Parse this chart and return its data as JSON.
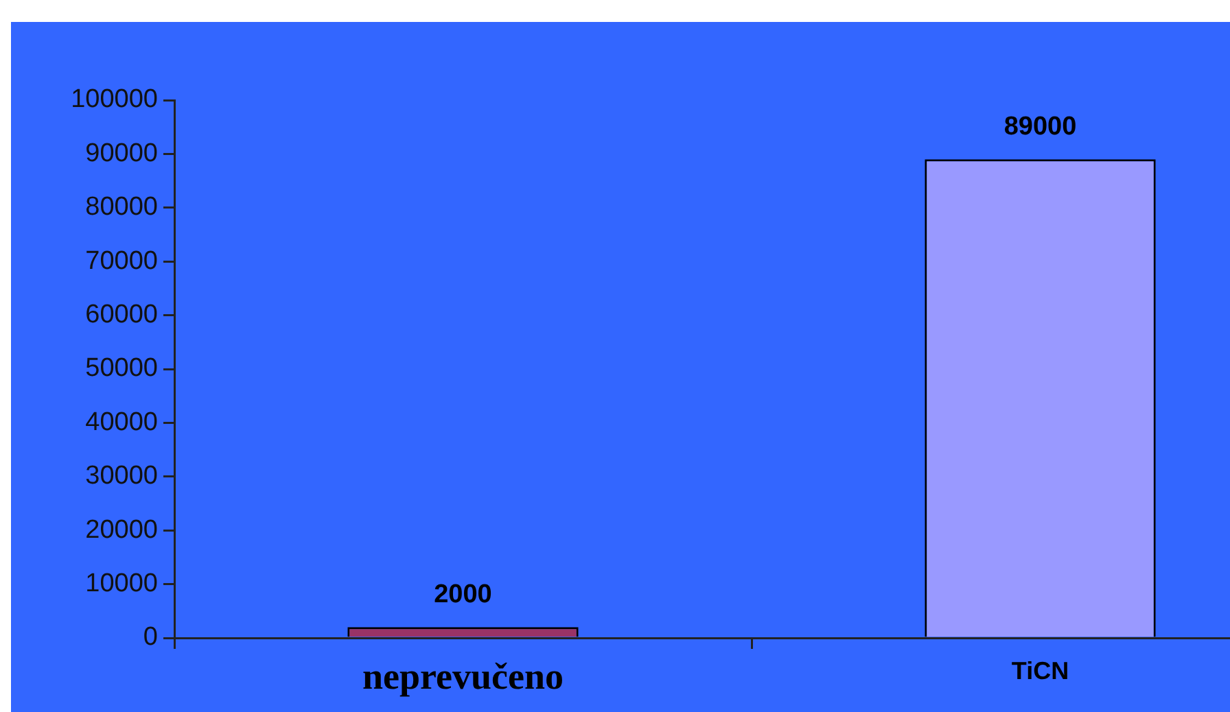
{
  "chart_data": {
    "type": "bar",
    "categories": [
      "neprevučeno",
      "TiCN"
    ],
    "values": [
      2000,
      89000
    ],
    "colors": [
      "#993366",
      "#9999ff"
    ],
    "ylim": [
      0,
      100000
    ],
    "yticks": [
      0,
      10000,
      20000,
      30000,
      40000,
      50000,
      60000,
      70000,
      80000,
      90000,
      100000
    ],
    "grid": false,
    "legend": false,
    "data_labels": true
  }
}
